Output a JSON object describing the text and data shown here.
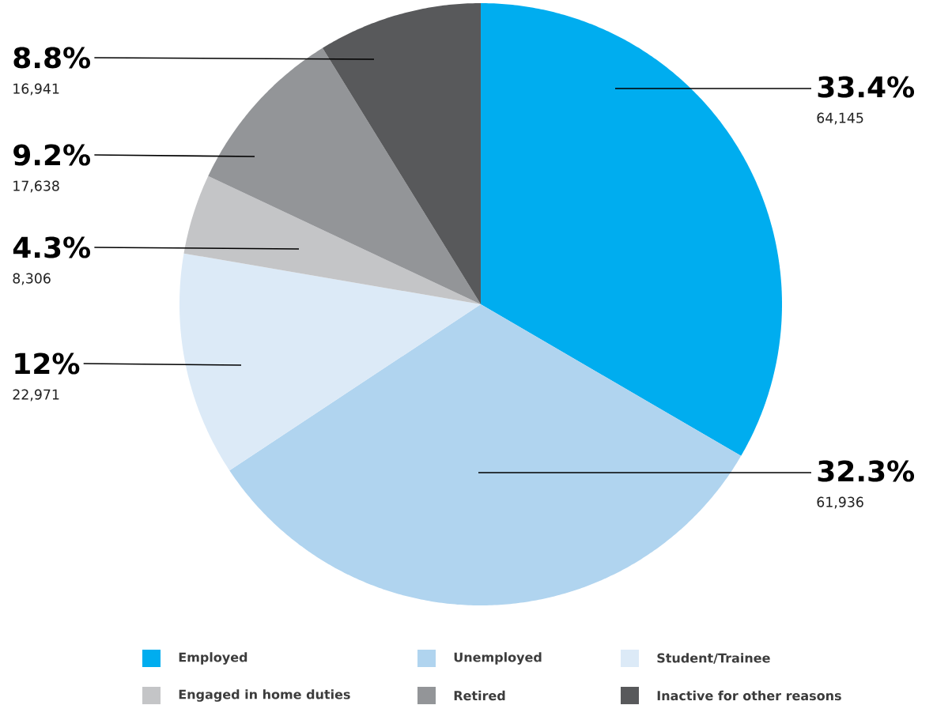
{
  "chart_data": {
    "type": "pie",
    "categories": [
      "Employed",
      "Unemployed",
      "Student/Trainee",
      "Engaged in home duties",
      "Retired",
      "Inactive for other reasons"
    ],
    "values": [
      33.4,
      32.3,
      12,
      4.3,
      9.2,
      8.8
    ],
    "colors": [
      "#00adef",
      "#b0d4ef",
      "#dceaf7",
      "#c4c5c7",
      "#939598",
      "#58595b"
    ],
    "value_labels": [
      "33.4%",
      "32.3%",
      "12%",
      "4.3%",
      "9.2%",
      "8.8%"
    ],
    "annotations": [
      "64,145",
      "61,936",
      "22,971",
      "8,306",
      "17,638",
      "16,941"
    ],
    "legend": "bottom"
  }
}
